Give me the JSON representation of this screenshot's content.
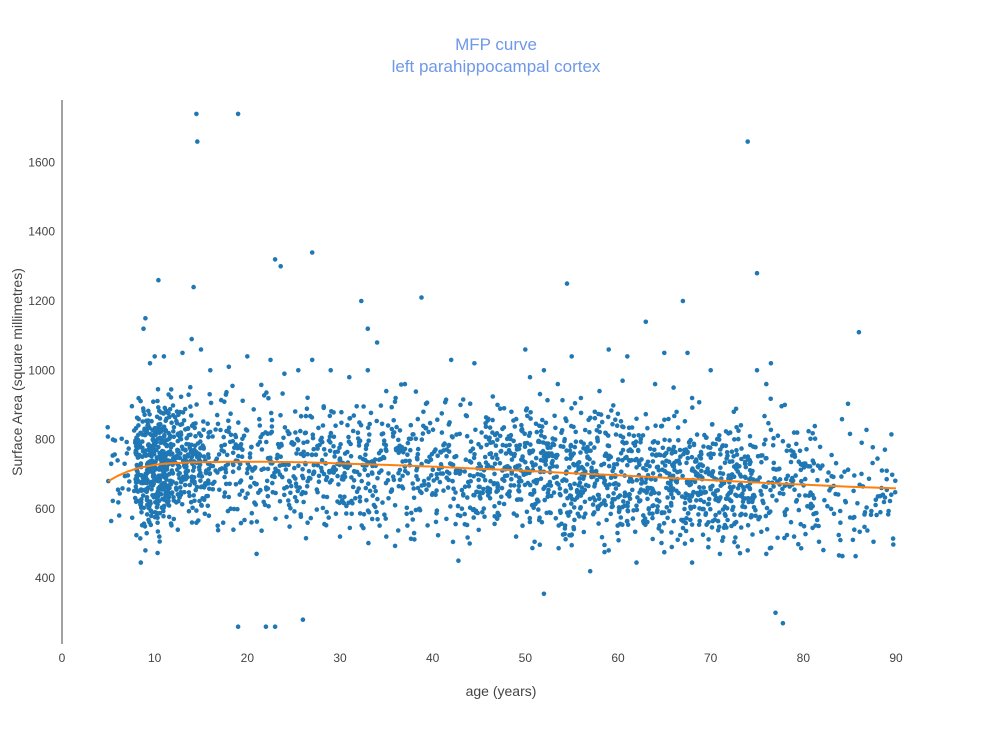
{
  "chart_data": {
    "type": "scatter",
    "title_lines": [
      "MFP curve",
      "left parahippocampal cortex"
    ],
    "xlabel": "age (years)",
    "ylabel": "Surface Area (square millimetres)",
    "xlim": [
      0,
      90
    ],
    "ylim": [
      210,
      1780
    ],
    "x_ticks": [
      0,
      10,
      20,
      30,
      40,
      50,
      60,
      70,
      80,
      90
    ],
    "y_ticks": [
      400,
      600,
      800,
      1000,
      1200,
      1400,
      1600
    ],
    "grid": false,
    "legend": "none",
    "colors": {
      "points": "#1f77b4",
      "curve": "#ff7f0e",
      "title": "#6e98e8"
    },
    "series": [
      {
        "kind": "points",
        "points": [
          [
            14.5,
            1740
          ],
          [
            19.0,
            1740
          ],
          [
            14.6,
            1660
          ],
          [
            74.0,
            1660
          ],
          [
            27.0,
            1340
          ],
          [
            23.0,
            1320
          ],
          [
            23.6,
            1300
          ],
          [
            75.0,
            1280
          ],
          [
            10.4,
            1260
          ],
          [
            54.5,
            1250
          ],
          [
            14.2,
            1240
          ],
          [
            38.8,
            1210
          ],
          [
            32.3,
            1200
          ],
          [
            67.0,
            1200
          ],
          [
            63.0,
            1140
          ],
          [
            9.0,
            1150
          ],
          [
            8.8,
            1120
          ],
          [
            33.0,
            1120
          ],
          [
            86.0,
            1110
          ],
          [
            14.0,
            1090
          ],
          [
            34.0,
            1080
          ],
          [
            59.0,
            1060
          ],
          [
            50.0,
            1060
          ],
          [
            55.0,
            1040
          ],
          [
            61.0,
            1040
          ],
          [
            65.0,
            1050
          ],
          [
            67.5,
            1050
          ],
          [
            27.0,
            1030
          ],
          [
            42.0,
            1030
          ],
          [
            44.5,
            1020
          ],
          [
            76.5,
            1020
          ],
          [
            70.0,
            1000
          ],
          [
            75.0,
            1000
          ],
          [
            33.0,
            1000
          ],
          [
            52.0,
            1000
          ],
          [
            57.5,
            880
          ],
          [
            62.0,
            860
          ],
          [
            12.0,
            870
          ],
          [
            11.5,
            930
          ],
          [
            35.0,
            940
          ],
          [
            47.0,
            900
          ],
          [
            52.0,
            355
          ],
          [
            57.0,
            420
          ],
          [
            5.0,
            680
          ],
          [
            5.5,
            800
          ],
          [
            6.0,
            740
          ],
          [
            7.0,
            760
          ],
          [
            8.5,
            445
          ],
          [
            9.0,
            480
          ],
          [
            21.0,
            470
          ],
          [
            19.0,
            260
          ],
          [
            22.0,
            260
          ],
          [
            23.0,
            260
          ],
          [
            26.0,
            280
          ],
          [
            77.0,
            300
          ],
          [
            77.8,
            270
          ],
          [
            89.5,
            815
          ],
          [
            89.0,
            710
          ],
          [
            88.0,
            745
          ],
          [
            85.5,
            540
          ],
          [
            84.0,
            560
          ],
          [
            83.0,
            600
          ],
          [
            81.0,
            640
          ],
          [
            79.0,
            820
          ],
          [
            78.0,
            900
          ],
          [
            76.0,
            960
          ],
          [
            72.5,
            880
          ],
          [
            68.0,
            920
          ],
          [
            66.0,
            950
          ],
          [
            64.0,
            960
          ],
          [
            60.5,
            970
          ],
          [
            58.0,
            940
          ],
          [
            56.0,
            920
          ],
          [
            53.5,
            960
          ],
          [
            50.5,
            980
          ],
          [
            48.5,
            880
          ],
          [
            46.0,
            860
          ],
          [
            43.0,
            900
          ],
          [
            41.0,
            820
          ],
          [
            39.0,
            880
          ],
          [
            37.0,
            960
          ],
          [
            36.0,
            920
          ],
          [
            31.0,
            980
          ],
          [
            29.0,
            1000
          ],
          [
            25.5,
            1000
          ],
          [
            24.0,
            990
          ],
          [
            22.5,
            1030
          ],
          [
            20.0,
            1040
          ],
          [
            18.0,
            1010
          ],
          [
            16.0,
            1000
          ],
          [
            15.0,
            1060
          ],
          [
            13.0,
            1050
          ],
          [
            11.0,
            1040
          ],
          [
            10.0,
            1040
          ],
          [
            9.5,
            1020
          ],
          [
            12.5,
            540
          ],
          [
            10.5,
            520
          ],
          [
            14.5,
            560
          ],
          [
            18.5,
            540
          ],
          [
            26.5,
            560
          ],
          [
            30.0,
            520
          ],
          [
            35.0,
            520
          ],
          [
            38.0,
            530
          ],
          [
            44.0,
            500
          ],
          [
            49.0,
            520
          ],
          [
            51.0,
            505
          ],
          [
            55.0,
            495
          ],
          [
            59.0,
            480
          ],
          [
            62.0,
            445
          ],
          [
            65.0,
            475
          ],
          [
            68.0,
            445
          ],
          [
            71.0,
            470
          ],
          [
            74.0,
            480
          ],
          [
            76.0,
            470
          ],
          [
            79.0,
            520
          ],
          [
            81.0,
            545
          ],
          [
            84.0,
            510
          ]
        ]
      },
      {
        "kind": "curve",
        "points": [
          [
            5,
            680
          ],
          [
            6,
            695
          ],
          [
            7,
            707
          ],
          [
            8,
            716
          ],
          [
            9,
            722
          ],
          [
            10,
            727
          ],
          [
            11,
            730
          ],
          [
            12,
            732
          ],
          [
            14,
            734
          ],
          [
            16,
            735
          ],
          [
            18,
            736
          ],
          [
            20,
            736
          ],
          [
            22,
            736
          ],
          [
            25,
            735
          ],
          [
            28,
            733
          ],
          [
            30,
            731
          ],
          [
            35,
            727
          ],
          [
            40,
            722
          ],
          [
            45,
            716
          ],
          [
            50,
            710
          ],
          [
            55,
            703
          ],
          [
            60,
            697
          ],
          [
            65,
            690
          ],
          [
            70,
            683
          ],
          [
            75,
            676
          ],
          [
            80,
            670
          ],
          [
            85,
            664
          ],
          [
            90,
            659
          ]
        ]
      }
    ]
  }
}
